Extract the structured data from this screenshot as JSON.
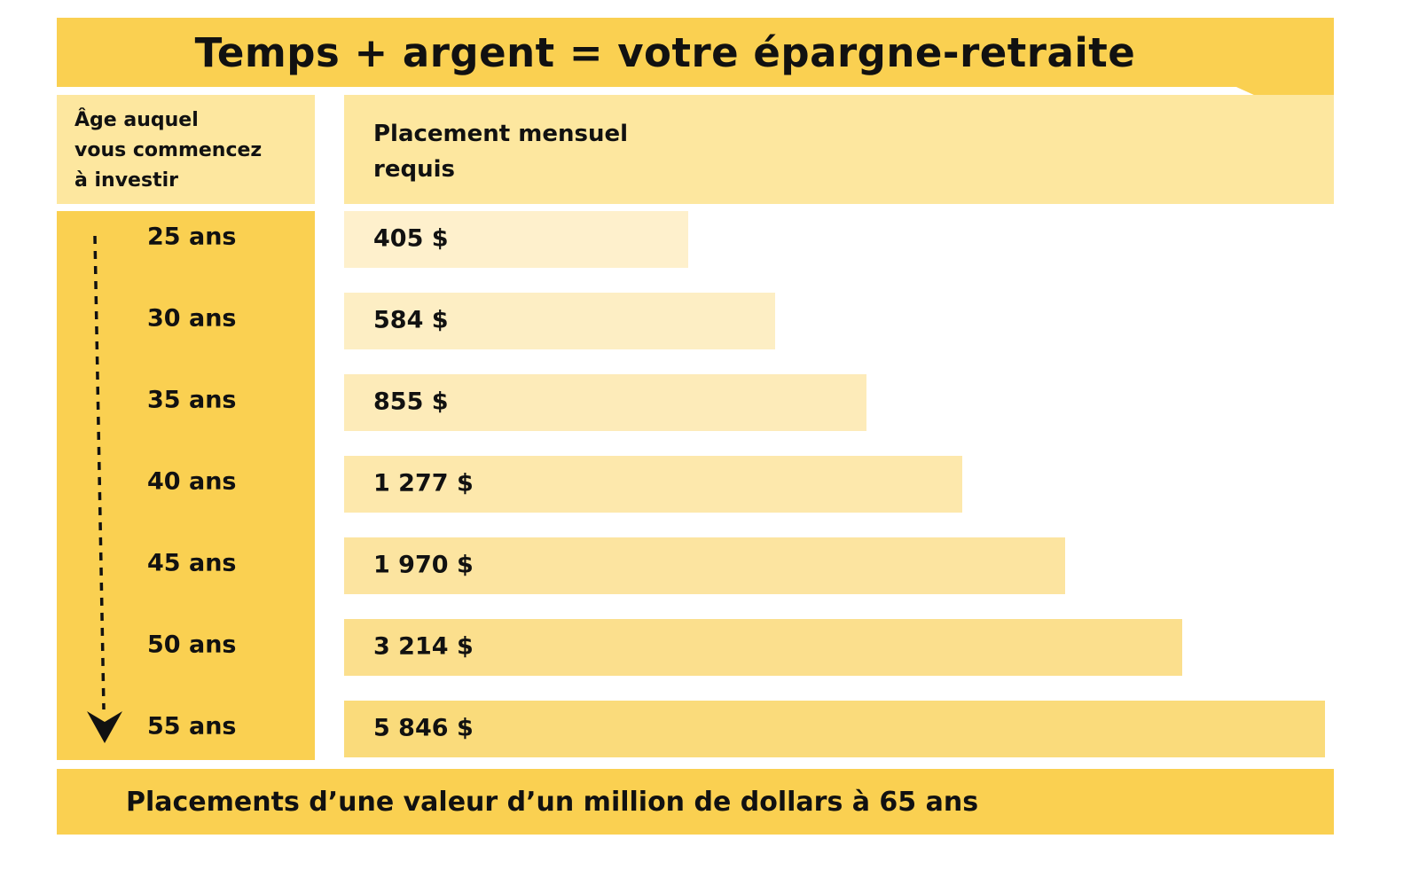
{
  "title": "Temps + argent = votre épargne-retraite",
  "age_header": [
    "Âge auquel",
    "vous commencez",
    "à investir"
  ],
  "amount_header": [
    "Placement mensuel",
    "requis"
  ],
  "footer": "Placements d’une valeur d’un million de dollars à 65 ans",
  "colors": {
    "gold": "#fad051",
    "header_fill": "#fde79f",
    "bar_fills": [
      "#fef0cc",
      "#fdeec4",
      "#fdebb9",
      "#fde8ac",
      "#fce4a0",
      "#fbdf8d",
      "#fadb7b"
    ]
  },
  "chart_data": {
    "type": "bar",
    "orientation": "horizontal",
    "categories": [
      "25 ans",
      "30 ans",
      "35 ans",
      "40 ans",
      "45 ans",
      "50 ans",
      "55 ans"
    ],
    "values": [
      405,
      584,
      855,
      1277,
      1970,
      3214,
      5846
    ],
    "value_labels": [
      "405 $",
      "584 $",
      "855 $",
      "1 277 $",
      "1 970 $",
      "3 214 $",
      "5 846 $"
    ],
    "title": "Temps + argent = votre épargne-retraite",
    "xlabel": "Placement mensuel requis",
    "ylabel": "Âge auquel vous commencez à investir",
    "grid": false
  }
}
